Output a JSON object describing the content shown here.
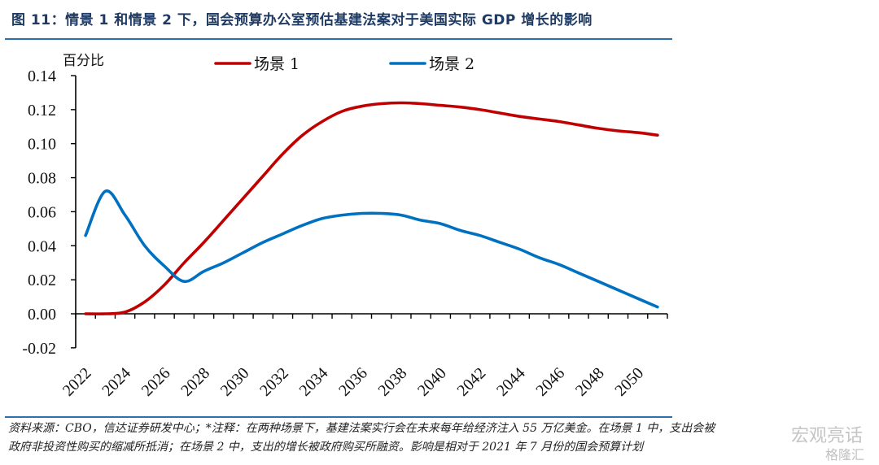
{
  "header": {
    "title": "图 11：情景 1 和情景 2 下，国会预算办公室预估基建法案对于美国实际 GDP 增长的影响"
  },
  "footer": {
    "note_line1": "资料来源：CBO，信达证券研发中心；*注释：在两种场景下，基建法案实行会在未来每年给经济注入 55 万亿美金。在场景 1 中，支出会被",
    "note_line2": "政府非投资性购买的缩减所抵消；在场景 2 中，支出的增长被政府购买所融资。影响是相对于 2021 年 7 月份的国会预算计划",
    "watermark_primary": "宏观亮话",
    "watermark_secondary": "格隆汇"
  },
  "colors": {
    "scenario1": "#c00000",
    "scenario2": "#0070c0",
    "title": "#1f3b63",
    "rule": "#2e6fad"
  },
  "chart_data": {
    "type": "line",
    "title": "情景 1 和情景 2 下，国会预算办公室预估基建法案对于美国实际 GDP 增长的影响",
    "xlabel": "",
    "ylabel": "百分比",
    "ylim": [
      -0.02,
      0.14
    ],
    "yticks": [
      -0.02,
      0.0,
      0.02,
      0.04,
      0.06,
      0.08,
      0.1,
      0.12,
      0.14
    ],
    "ytick_labels": [
      "-0.02",
      "0.00",
      "0.02",
      "0.04",
      "0.06",
      "0.08",
      "0.10",
      "0.12",
      "0.14"
    ],
    "xtick_labels": [
      "2022",
      "2024",
      "2026",
      "2028",
      "2030",
      "2032",
      "2034",
      "2036",
      "2038",
      "2040",
      "2042",
      "2044",
      "2046",
      "2048",
      "2050"
    ],
    "grid": false,
    "legend_position": "top-center",
    "x": [
      2022,
      2023,
      2024,
      2025,
      2026,
      2027,
      2028,
      2029,
      2030,
      2031,
      2032,
      2033,
      2034,
      2035,
      2036,
      2037,
      2038,
      2039,
      2040,
      2041,
      2042,
      2043,
      2044,
      2045,
      2046,
      2047,
      2048,
      2049,
      2050,
      2051
    ],
    "series": [
      {
        "name": "场景 1",
        "color": "#c00000",
        "values": [
          0.0,
          0.0,
          0.001,
          0.007,
          0.017,
          0.03,
          0.042,
          0.055,
          0.068,
          0.081,
          0.094,
          0.105,
          0.113,
          0.119,
          0.122,
          0.1235,
          0.124,
          0.1235,
          0.1225,
          0.1215,
          0.12,
          0.118,
          0.116,
          0.1145,
          0.113,
          0.111,
          0.109,
          0.1075,
          0.1065,
          0.105
        ]
      },
      {
        "name": "场景 2",
        "color": "#0070c0",
        "values": [
          0.046,
          0.072,
          0.058,
          0.04,
          0.028,
          0.019,
          0.025,
          0.03,
          0.036,
          0.042,
          0.047,
          0.052,
          0.056,
          0.058,
          0.059,
          0.059,
          0.058,
          0.055,
          0.053,
          0.049,
          0.046,
          0.042,
          0.038,
          0.033,
          0.029,
          0.024,
          0.019,
          0.014,
          0.009,
          0.004
        ]
      }
    ]
  }
}
